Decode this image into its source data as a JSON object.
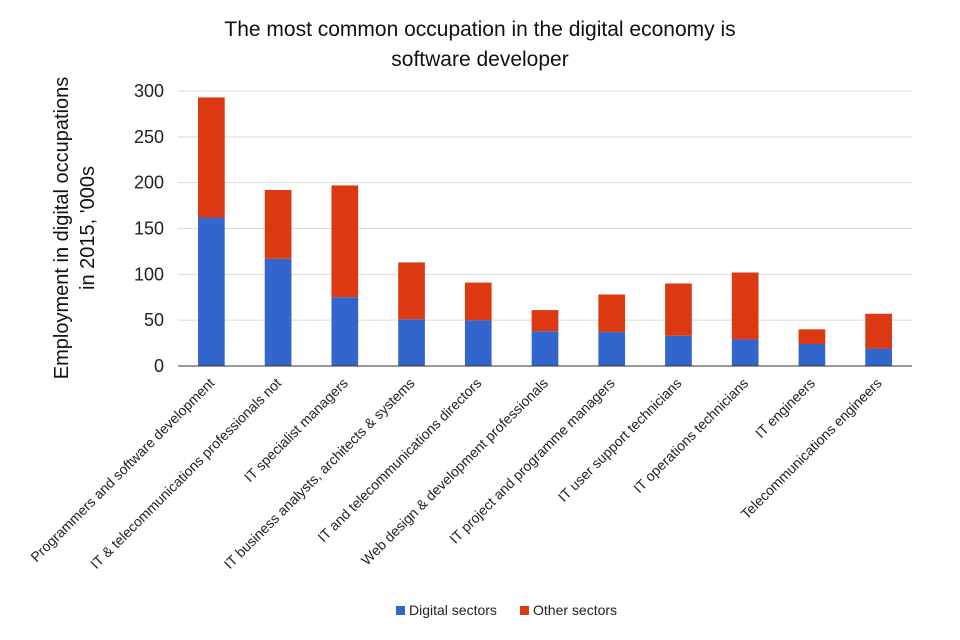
{
  "chart_data": {
    "type": "bar",
    "stacked": true,
    "title": "The most common occupation in the digital economy is software developer",
    "title_lines": [
      "The most common occupation in the digital economy is",
      "software developer"
    ],
    "ylabel": "Employment in digital occupations in 2015, '000s",
    "ylabel_lines": [
      "Employment in digital occupations",
      "in 2015, '000s"
    ],
    "xlabel": "",
    "ylim": [
      0,
      300
    ],
    "yticks": [
      0,
      50,
      100,
      150,
      200,
      250,
      300
    ],
    "grid": true,
    "legend_position": "bottom",
    "categories": [
      "Programmers and software development",
      "IT & telecommunications professionals not",
      "IT specialist managers",
      "IT business analysts, architects & systems",
      "IT and telecommunications directors",
      "Web design & development professionals",
      "IT project and programme managers",
      "IT user support technicians",
      "IT operations technicians",
      "IT engineers",
      "Telecommunications engineers"
    ],
    "series": [
      {
        "name": "Digital sectors",
        "color": "#3366cc",
        "values": [
          162,
          117,
          75,
          51,
          50,
          38,
          37,
          33,
          29,
          24,
          19
        ]
      },
      {
        "name": "Other sectors",
        "color": "#dc3912",
        "values": [
          131,
          75,
          122,
          62,
          41,
          23,
          41,
          57,
          73,
          16,
          38
        ]
      }
    ]
  }
}
